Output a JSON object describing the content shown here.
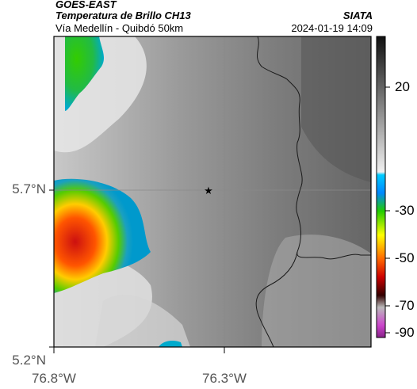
{
  "header": {
    "line1": "GOES-EAST",
    "line2": "Temperatura de Brillo CH13",
    "line3": "Vía Medellín - Quibdó 50km",
    "org": "SIATA",
    "datetime": "2024-01-19 14:09"
  },
  "axes": {
    "y_labels": [
      "5.7°N",
      "5.2°N"
    ],
    "x_labels": [
      "76.8°W",
      "76.3°W"
    ]
  },
  "colorbar": {
    "labels": [
      "20",
      "-30",
      "-50",
      "-70",
      "-90"
    ],
    "units": ""
  },
  "map": {
    "marker_icon": "star-icon",
    "gridline_color": "#8a8a8a",
    "border_color": "#1a1a1a"
  }
}
